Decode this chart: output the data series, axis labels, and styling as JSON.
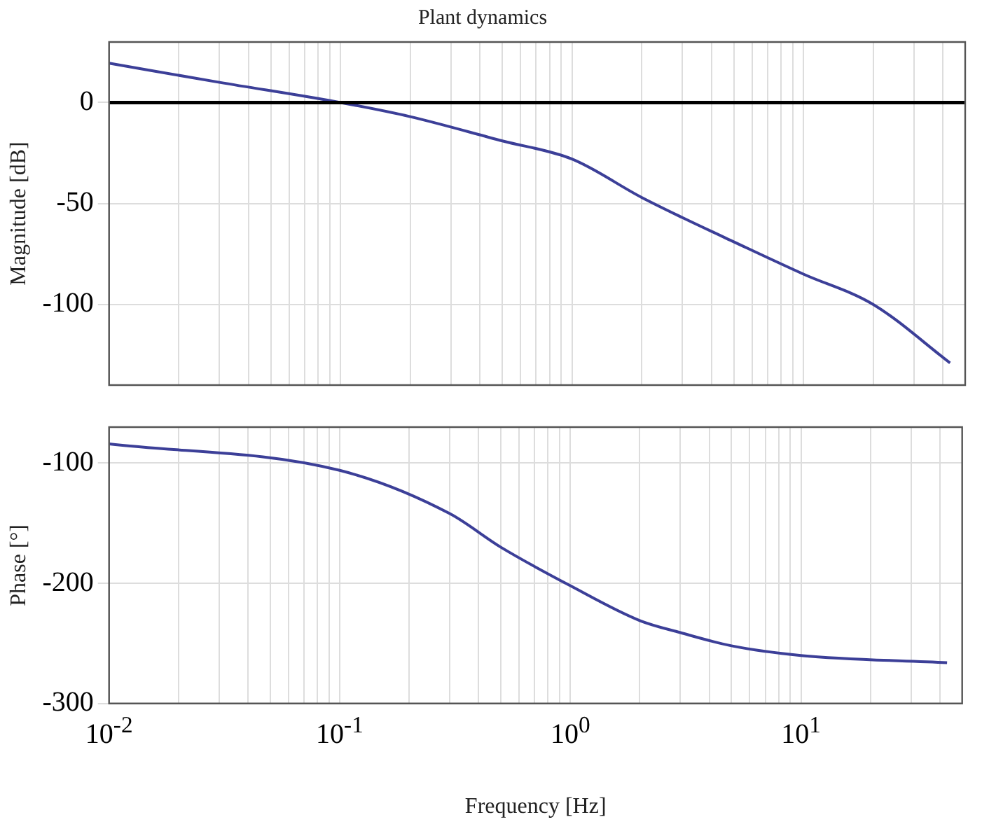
{
  "chart_data": [
    {
      "type": "line",
      "title": "Plant dynamics",
      "ylabel": "Magnitude [dB]",
      "log": "x",
      "grid": true,
      "tick_labels": "y",
      "x": [
        0.01,
        0.03,
        0.1,
        0.2,
        0.5,
        1,
        2,
        3,
        5,
        10,
        20,
        43
      ],
      "series": [
        {
          "color": "#3c3f98",
          "values": [
            19.5,
            10,
            0,
            -7,
            -19,
            -28,
            -47,
            -57,
            -69,
            -85,
            -100,
            -129
          ]
        }
      ],
      "xlim": [
        0.01,
        50
      ],
      "ylim": [
        -140,
        30
      ],
      "yticks": [
        -100,
        -50,
        0
      ],
      "xticks": [
        {
          "value": 0.01,
          "label": null
        },
        {
          "value": 0.02,
          "label": null
        },
        {
          "value": 0.03,
          "label": null
        },
        {
          "value": 0.04,
          "label": null
        },
        {
          "value": 0.05,
          "label": null
        },
        {
          "value": 0.06,
          "label": null
        },
        {
          "value": 0.07,
          "label": null
        },
        {
          "value": 0.08,
          "label": null
        },
        {
          "value": 0.09,
          "label": null
        },
        {
          "value": 0.1,
          "label": null
        },
        {
          "value": 0.2,
          "label": null
        },
        {
          "value": 0.3,
          "label": null
        },
        {
          "value": 0.4,
          "label": null
        },
        {
          "value": 0.5,
          "label": null
        },
        {
          "value": 0.6,
          "label": null
        },
        {
          "value": 0.7,
          "label": null
        },
        {
          "value": 0.8,
          "label": null
        },
        {
          "value": 0.9,
          "label": null
        },
        {
          "value": 1,
          "label": null
        },
        {
          "value": 2,
          "label": null
        },
        {
          "value": 3,
          "label": null
        },
        {
          "value": 4,
          "label": null
        },
        {
          "value": 5,
          "label": null
        },
        {
          "value": 6,
          "label": null
        },
        {
          "value": 7,
          "label": null
        },
        {
          "value": 8,
          "label": null
        },
        {
          "value": 9,
          "label": null
        },
        {
          "value": 10,
          "label": null
        },
        {
          "value": 20,
          "label": null
        },
        {
          "value": 30,
          "label": null
        },
        {
          "value": 40,
          "label": null
        }
      ],
      "ref_lines": [
        {
          "axis": "y",
          "value": 0,
          "color": "#000000"
        }
      ]
    },
    {
      "type": "line",
      "xlabel": "Frequency [Hz]",
      "ylabel": "Phase [°]",
      "log": "x",
      "grid": true,
      "x": [
        0.01,
        0.1,
        0.3,
        0.5,
        1,
        2,
        3,
        5,
        10,
        43
      ],
      "series": [
        {
          "color": "#3c3f98",
          "values": [
            -84,
            -106,
            -142,
            -170,
            -202,
            -231,
            -241,
            -252,
            -260,
            -266
          ]
        }
      ],
      "xlim": [
        0.01,
        50
      ],
      "ylim": [
        -300,
        -70
      ],
      "yticks": [
        -300,
        -200,
        -100
      ],
      "xticks": [
        {
          "value": 0.01,
          "label": "10$^{-2}$"
        },
        {
          "value": 0.02,
          "label": null
        },
        {
          "value": 0.03,
          "label": null
        },
        {
          "value": 0.04,
          "label": null
        },
        {
          "value": 0.05,
          "label": null
        },
        {
          "value": 0.06,
          "label": null
        },
        {
          "value": 0.07,
          "label": null
        },
        {
          "value": 0.08,
          "label": null
        },
        {
          "value": 0.09,
          "label": null
        },
        {
          "value": 0.1,
          "label": "10$^{-1}$"
        },
        {
          "value": 0.2,
          "label": null
        },
        {
          "value": 0.3,
          "label": null
        },
        {
          "value": 0.4,
          "label": null
        },
        {
          "value": 0.5,
          "label": null
        },
        {
          "value": 0.6,
          "label": null
        },
        {
          "value": 0.7,
          "label": null
        },
        {
          "value": 0.8,
          "label": null
        },
        {
          "value": 0.9,
          "label": null
        },
        {
          "value": 1,
          "label": "10$^{0}$"
        },
        {
          "value": 2,
          "label": null
        },
        {
          "value": 3,
          "label": null
        },
        {
          "value": 4,
          "label": null
        },
        {
          "value": 5,
          "label": null
        },
        {
          "value": 6,
          "label": null
        },
        {
          "value": 7,
          "label": null
        },
        {
          "value": 8,
          "label": null
        },
        {
          "value": 9,
          "label": null
        },
        {
          "value": 10,
          "label": "10$^{1}$"
        },
        {
          "value": 20,
          "label": null
        },
        {
          "value": 30,
          "label": null
        },
        {
          "value": 40,
          "label": null
        }
      ]
    }
  ]
}
